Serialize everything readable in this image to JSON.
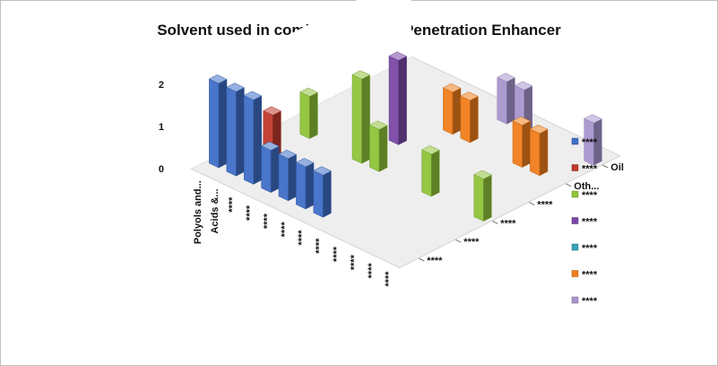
{
  "chart_data": {
    "type": "bar",
    "variant": "3d-clustered-column",
    "title": "Solvent used in combination with Penetration Enhancer",
    "z_ticks": [
      "0",
      "1",
      "2"
    ],
    "zlim": [
      0,
      2
    ],
    "categories": [
      "Polyols and...",
      "Acids &...",
      "****",
      "****",
      "****",
      "****",
      "****",
      "****",
      "****",
      "****",
      "****",
      "****"
    ],
    "depth_categories": [
      "****",
      "****",
      "****",
      "****",
      "Oth...",
      "Oil"
    ],
    "series": [
      {
        "label": "****",
        "color": "#3f6fc7",
        "row": 0,
        "values": [
          2,
          2,
          2,
          1,
          1,
          1,
          1,
          0,
          0,
          0,
          0,
          0
        ]
      },
      {
        "label": "****",
        "color": "#c0392b",
        "row": 1,
        "values": [
          0,
          1,
          0,
          0,
          0,
          0,
          0,
          0,
          0,
          0,
          0,
          0
        ]
      },
      {
        "label": "****",
        "color": "#8fc33a",
        "row": 2,
        "values": [
          0,
          1,
          0,
          0,
          2,
          1,
          0,
          0,
          1,
          0,
          0,
          1
        ]
      },
      {
        "label": "****",
        "color": "#7a48a8",
        "row": 3,
        "values": [
          0,
          0,
          0,
          0,
          2,
          0,
          0,
          0,
          0,
          0,
          0,
          0
        ]
      },
      {
        "label": "****",
        "color": "#35a2b8",
        "row": 4,
        "values": [
          0,
          0,
          0,
          0,
          0,
          0,
          0,
          0,
          0,
          0,
          0,
          0
        ]
      },
      {
        "label": "****",
        "color": "#f07e1c",
        "row": 4,
        "values": [
          0,
          0,
          0,
          0,
          0,
          1,
          1,
          0,
          0,
          1,
          1,
          0
        ]
      },
      {
        "label": "****",
        "color": "#a896cf",
        "row": 5,
        "values": [
          0,
          0,
          0,
          0,
          0,
          0,
          1,
          1,
          0,
          0,
          0,
          1
        ]
      }
    ]
  }
}
